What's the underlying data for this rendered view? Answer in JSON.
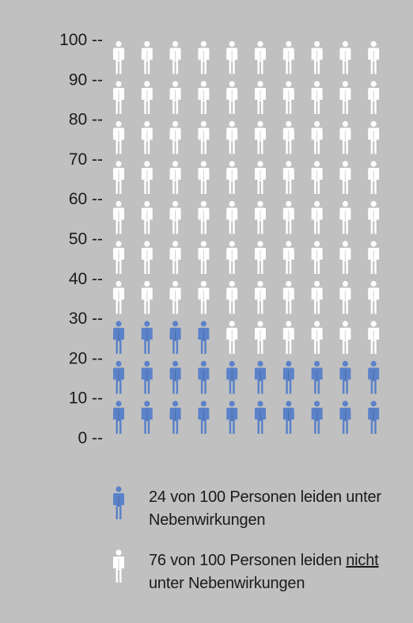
{
  "chart_data": {
    "type": "pictograph",
    "total": 100,
    "columns": 10,
    "rows": 10,
    "affected_count": 24,
    "unaffected_count": 76,
    "y_ticks": [
      "100 --",
      "90 --",
      "80 --",
      "70 --",
      "60 --",
      "50 --",
      "40 --",
      "30 --",
      "20 --",
      "10 --",
      "0 --"
    ],
    "colors": {
      "affected": "#5b82c9",
      "unaffected": "#ffffff",
      "background": "#c0c0c0"
    },
    "legend": [
      {
        "icon": "person-icon-blue",
        "text_before": "24 von 100 Personen leiden unter",
        "text_underlined": "",
        "text_after": "",
        "line2": "Nebenwirkungen"
      },
      {
        "icon": "person-icon-white",
        "text_before": "76 von 100 Personen leiden ",
        "text_underlined": "nicht",
        "text_after": "",
        "line2": "unter Nebenwirkungen"
      }
    ]
  }
}
